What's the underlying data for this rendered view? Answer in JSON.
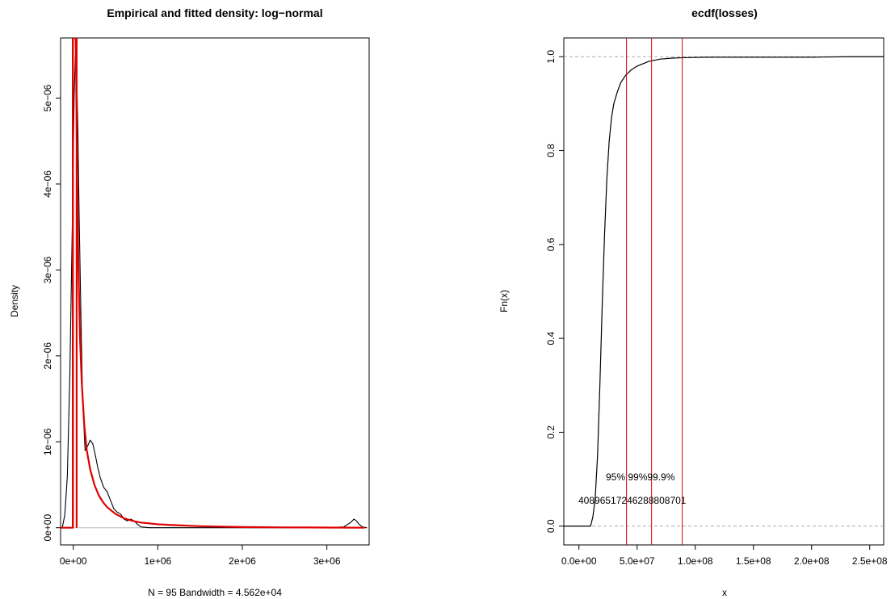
{
  "chart_data": [
    {
      "type": "line",
      "title": "Empirical and fitted density: log−normal",
      "xlabel": "N = 95   Bandwidth = 4.562e+04",
      "ylabel": "Density",
      "xlim": [
        -150000,
        3500000
      ],
      "ylim": [
        -2e-07,
        5.7e-06
      ],
      "x_ticks": [
        {
          "v": 0,
          "label": "0e+00"
        },
        {
          "v": 1000000,
          "label": "1e+06"
        },
        {
          "v": 2000000,
          "label": "2e+06"
        },
        {
          "v": 3000000,
          "label": "3e+06"
        }
      ],
      "y_ticks": [
        {
          "v": 0,
          "label": "0e+00"
        },
        {
          "v": 1e-06,
          "label": "1e−06"
        },
        {
          "v": 2e-06,
          "label": "2e−06"
        },
        {
          "v": 3e-06,
          "label": "3e−06"
        },
        {
          "v": 4e-06,
          "label": "4e−06"
        },
        {
          "v": 5e-06,
          "label": "5e−06"
        }
      ],
      "grid": false,
      "colors": {
        "empirical": "#000000",
        "fitted": "#e00000",
        "baseline": "#bbbbbb"
      },
      "series": [
        {
          "key": "empirical",
          "x": [
            -130000,
            -100000,
            -70000,
            -40000,
            -10000,
            10000,
            25000,
            40000,
            55000,
            70000,
            90000,
            110000,
            140000,
            170000,
            200000,
            230000,
            260000,
            290000,
            320000,
            360000,
            400000,
            440000,
            480000,
            520000,
            560000,
            600000,
            640000,
            680000,
            720000,
            760000,
            800000,
            900000,
            1000000,
            1500000,
            2000000,
            2500000,
            3000000,
            3200000,
            3280000,
            3320000,
            3350000,
            3380000,
            3420000,
            3470000
          ],
          "y": [
            0,
            1.5e-07,
            6e-07,
            1.8e-06,
            3.6e-06,
            5e-06,
            5.5e-06,
            5.3e-06,
            4.6e-06,
            3.6e-06,
            2.5e-06,
            1.5e-06,
            9e-07,
            9.5e-07,
            1.02e-06,
            9.8e-07,
            8.5e-07,
            7e-07,
            5.8e-07,
            4.7e-07,
            4.2e-07,
            3.2e-07,
            2.2e-07,
            1.8e-07,
            1.6e-07,
            1e-07,
            8e-08,
            1e-07,
            8e-08,
            4e-08,
            1e-08,
            0,
            0,
            0,
            0,
            0,
            0,
            1e-08,
            6e-08,
            1e-07,
            8e-08,
            4e-08,
            1e-08,
            0
          ]
        },
        {
          "key": "fitted",
          "x": [
            -150000,
            -5000,
            -5000,
            20000,
            28000,
            35000,
            45000,
            60000,
            80000,
            100000,
            130000,
            160000,
            200000,
            250000,
            300000,
            350000,
            400000,
            500000,
            600000,
            700000,
            800000,
            1000000,
            1200000,
            1500000,
            2000000,
            2500000,
            3000000,
            3450000
          ],
          "y": [
            0,
            0,
            5.7e-06,
            5.7e-06,
            5.7e-06,
            5.2e-06,
            4.2e-06,
            3.1e-06,
            2.2e-06,
            1.7e-06,
            1.2e-06,
            9e-07,
            6.8e-07,
            5e-07,
            3.8e-07,
            3e-07,
            2.4e-07,
            1.6e-07,
            1.1e-07,
            8e-08,
            6e-08,
            4e-08,
            3e-08,
            1.8e-08,
            8e-09,
            4e-09,
            2e-09,
            0
          ]
        }
      ],
      "fitted_verticals": [
        -5000,
        40000
      ]
    },
    {
      "type": "line",
      "title": "ecdf(losses)",
      "xlabel": "x",
      "ylabel": "Fn(x)",
      "xlim": [
        -13000000,
        262000000
      ],
      "ylim": [
        -0.04,
        1.04
      ],
      "x_ticks": [
        {
          "v": 0,
          "label": "0.0e+00"
        },
        {
          "v": 50000000,
          "label": "5.0e+07"
        },
        {
          "v": 100000000,
          "label": "1.0e+08"
        },
        {
          "v": 150000000,
          "label": "1.5e+08"
        },
        {
          "v": 200000000,
          "label": "2.0e+08"
        },
        {
          "v": 250000000,
          "label": "2.5e+08"
        }
      ],
      "y_ticks": [
        {
          "v": 0,
          "label": "0.0"
        },
        {
          "v": 0.2,
          "label": "0.2"
        },
        {
          "v": 0.4,
          "label": "0.4"
        },
        {
          "v": 0.6,
          "label": "0.6"
        },
        {
          "v": 0.8,
          "label": "0.8"
        },
        {
          "v": 1.0,
          "label": "1.0"
        }
      ],
      "grid": false,
      "colors": {
        "ecdf": "#000000",
        "quantile": "#e00000",
        "reference": "#aaaaaa"
      },
      "reference_lines": [
        0,
        1
      ],
      "series": [
        {
          "key": "ecdf",
          "x": [
            -13000000,
            10000000,
            12000000,
            14000000,
            16000000,
            18000000,
            20000000,
            22000000,
            24000000,
            26000000,
            28000000,
            30000000,
            33000000,
            36000000,
            40000000,
            45000000,
            50000000,
            60000000,
            70000000,
            80000000,
            90000000,
            110000000,
            150000000,
            200000000,
            232000000,
            262000000
          ],
          "y": [
            0,
            0,
            0.02,
            0.06,
            0.15,
            0.3,
            0.47,
            0.62,
            0.74,
            0.82,
            0.87,
            0.9,
            0.925,
            0.945,
            0.96,
            0.972,
            0.98,
            0.99,
            0.995,
            0.997,
            0.998,
            0.999,
            0.999,
            0.999,
            1.0,
            1.0
          ]
        }
      ],
      "quantiles": [
        {
          "x": 40896517,
          "pct_label": "95%"
        },
        {
          "x": 62472628,
          "pct_label": "99%"
        },
        {
          "x": 88808701,
          "pct_label": "99.9%"
        }
      ],
      "pct_labels_text": "95% 99%99.9%",
      "value_labels_text": "40896517246288808701"
    }
  ]
}
